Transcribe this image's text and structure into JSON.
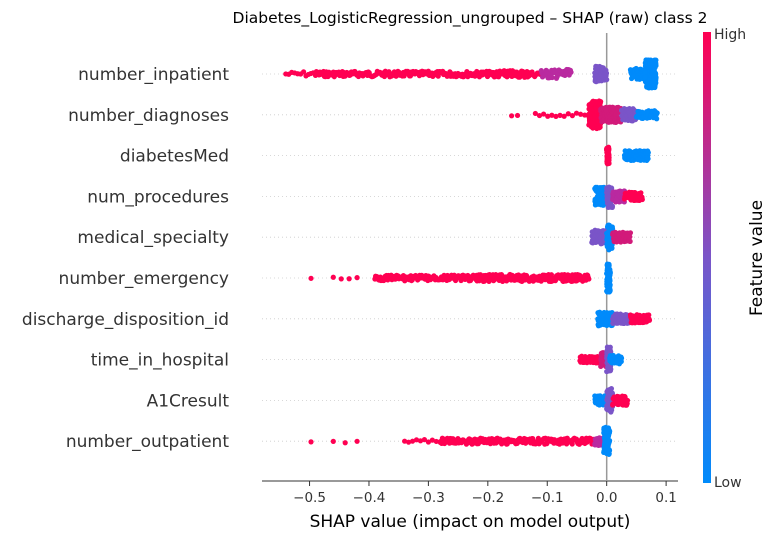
{
  "chart_data": {
    "type": "scatter",
    "title": "Diabetes_LogisticRegression_ungrouped – SHAP (raw) class 2",
    "xlabel": "SHAP value (impact on model output)",
    "xlim": [
      -0.58,
      0.12
    ],
    "xticks": [
      -0.5,
      -0.4,
      -0.3,
      -0.2,
      -0.1,
      0.0,
      0.1
    ],
    "xtick_labels": [
      "−0.5",
      "−0.4",
      "−0.3",
      "−0.2",
      "−0.1",
      "0.0",
      "0.1"
    ],
    "colorbar": {
      "label": "Feature value",
      "high": "High",
      "low": "Low",
      "low_color": "#008bfb",
      "high_color": "#ff0052"
    },
    "zero_line_color": "#999999",
    "features": [
      {
        "name": "number_inpatient",
        "segments": [
          {
            "from": -0.54,
            "to": -0.515,
            "color": "#ff0052",
            "h": 0.15,
            "n": 6
          },
          {
            "from": -0.51,
            "to": -0.49,
            "color": "#ff0052",
            "h": 0.18,
            "n": 6
          },
          {
            "from": -0.49,
            "to": -0.19,
            "color": "#ff0052",
            "h": 0.2,
            "n": 200
          },
          {
            "from": -0.19,
            "to": -0.13,
            "color": "#ff0052",
            "h": 0.25,
            "n": 60
          },
          {
            "from": -0.13,
            "to": -0.11,
            "color": "#ff0052",
            "h": 0.2,
            "n": 10
          },
          {
            "from": -0.11,
            "to": -0.06,
            "color": "#b92aa0",
            "h": 0.32,
            "n": 50
          },
          {
            "from": -0.02,
            "to": 0.0,
            "color": "#7a55c8",
            "h": 0.55,
            "n": 60
          },
          {
            "from": 0.065,
            "to": 0.083,
            "color": "#008bfb",
            "h": 1.0,
            "n": 220
          },
          {
            "from": 0.04,
            "to": 0.065,
            "color": "#008bfb",
            "h": 0.4,
            "n": 40
          }
        ]
      },
      {
        "name": "number_diagnoses",
        "segments": [
          {
            "from": -0.16,
            "to": -0.15,
            "color": "#ff0052",
            "h": 0.12,
            "n": 2
          },
          {
            "from": -0.12,
            "to": -0.03,
            "color": "#ff0052",
            "h": 0.12,
            "n": 14
          },
          {
            "from": -0.03,
            "to": -0.01,
            "color": "#ff0052",
            "h": 1.0,
            "n": 120
          },
          {
            "from": -0.01,
            "to": 0.025,
            "color": "#d21a7a",
            "h": 0.55,
            "n": 100
          },
          {
            "from": 0.025,
            "to": 0.05,
            "color": "#7a55c8",
            "h": 0.45,
            "n": 50
          },
          {
            "from": 0.05,
            "to": 0.085,
            "color": "#008bfb",
            "h": 0.3,
            "n": 40
          }
        ]
      },
      {
        "name": "diabetesMed",
        "segments": [
          {
            "from": 0.0,
            "to": 0.004,
            "color": "#ff0052",
            "h": 0.6,
            "n": 60
          },
          {
            "from": 0.03,
            "to": 0.07,
            "color": "#008bfb",
            "h": 0.35,
            "n": 110
          }
        ]
      },
      {
        "name": "num_procedures",
        "segments": [
          {
            "from": -0.02,
            "to": 0.0,
            "color": "#008bfb",
            "h": 0.65,
            "n": 80
          },
          {
            "from": 0.0,
            "to": 0.01,
            "color": "#7a55c8",
            "h": 0.8,
            "n": 60
          },
          {
            "from": 0.01,
            "to": 0.03,
            "color": "#b92aa0",
            "h": 0.4,
            "n": 70
          },
          {
            "from": 0.03,
            "to": 0.06,
            "color": "#ff0052",
            "h": 0.3,
            "n": 50
          }
        ]
      },
      {
        "name": "medical_specialty",
        "segments": [
          {
            "from": -0.025,
            "to": 0.0,
            "color": "#7a55c8",
            "h": 0.5,
            "n": 70
          },
          {
            "from": 0.0,
            "to": 0.01,
            "color": "#008bfb",
            "h": 0.9,
            "n": 60
          },
          {
            "from": 0.01,
            "to": 0.04,
            "color": "#d21a7a",
            "h": 0.35,
            "n": 60
          }
        ]
      },
      {
        "name": "number_emergency",
        "segments": [
          {
            "from": -0.5,
            "to": -0.495,
            "color": "#ff0052",
            "h": 0.1,
            "n": 1
          },
          {
            "from": -0.46,
            "to": -0.42,
            "color": "#ff0052",
            "h": 0.12,
            "n": 4
          },
          {
            "from": -0.39,
            "to": -0.22,
            "color": "#ff0052",
            "h": 0.2,
            "n": 150
          },
          {
            "from": -0.22,
            "to": -0.03,
            "color": "#ff0052",
            "h": 0.25,
            "n": 200
          },
          {
            "from": 0.0,
            "to": 0.006,
            "color": "#008bfb",
            "h": 1.0,
            "n": 80
          }
        ]
      },
      {
        "name": "discharge_disposition_id",
        "segments": [
          {
            "from": -0.015,
            "to": 0.01,
            "color": "#008bfb",
            "h": 0.5,
            "n": 80
          },
          {
            "from": 0.01,
            "to": 0.04,
            "color": "#7a55c8",
            "h": 0.35,
            "n": 80
          },
          {
            "from": 0.04,
            "to": 0.072,
            "color": "#ff0052",
            "h": 0.3,
            "n": 80
          }
        ]
      },
      {
        "name": "time_in_hospital",
        "segments": [
          {
            "from": -0.045,
            "to": -0.01,
            "color": "#ff0052",
            "h": 0.25,
            "n": 60
          },
          {
            "from": -0.01,
            "to": 0.0,
            "color": "#d21a7a",
            "h": 0.5,
            "n": 40
          },
          {
            "from": 0.0,
            "to": 0.007,
            "color": "#7a55c8",
            "h": 0.9,
            "n": 60
          },
          {
            "from": 0.005,
            "to": 0.025,
            "color": "#008bfb",
            "h": 0.3,
            "n": 50
          }
        ]
      },
      {
        "name": "A1Cresult",
        "segments": [
          {
            "from": -0.02,
            "to": 0.0,
            "color": "#008bfb",
            "h": 0.35,
            "n": 50
          },
          {
            "from": 0.0,
            "to": 0.01,
            "color": "#7a55c8",
            "h": 0.9,
            "n": 60
          },
          {
            "from": 0.01,
            "to": 0.035,
            "color": "#ff0052",
            "h": 0.35,
            "n": 50
          }
        ]
      },
      {
        "name": "number_outpatient",
        "segments": [
          {
            "from": -0.5,
            "to": -0.495,
            "color": "#ff0052",
            "h": 0.1,
            "n": 1
          },
          {
            "from": -0.46,
            "to": -0.42,
            "color": "#ff0052",
            "h": 0.12,
            "n": 3
          },
          {
            "from": -0.34,
            "to": -0.28,
            "color": "#ff0052",
            "h": 0.12,
            "n": 10
          },
          {
            "from": -0.28,
            "to": -0.02,
            "color": "#ff0052",
            "h": 0.22,
            "n": 220
          },
          {
            "from": -0.02,
            "to": -0.005,
            "color": "#b92aa0",
            "h": 0.3,
            "n": 40
          },
          {
            "from": -0.005,
            "to": 0.005,
            "color": "#008bfb",
            "h": 1.0,
            "n": 80
          }
        ]
      }
    ]
  }
}
